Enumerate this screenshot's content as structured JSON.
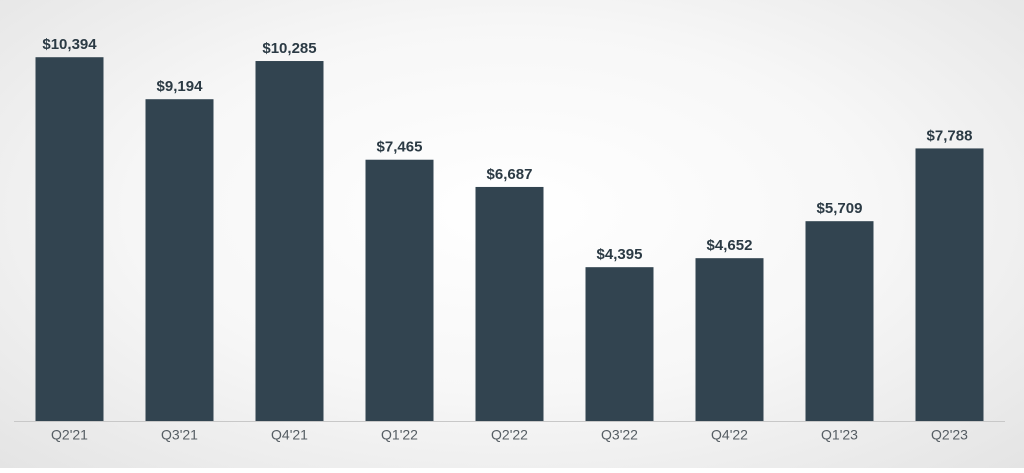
{
  "chart_data": {
    "type": "bar",
    "categories": [
      "Q2'21",
      "Q3'21",
      "Q4'21",
      "Q1'22",
      "Q2'22",
      "Q3'22",
      "Q4'22",
      "Q1'23",
      "Q2'23"
    ],
    "values": [
      10394,
      9194,
      10285,
      7465,
      6687,
      4395,
      4652,
      5709,
      7788
    ],
    "value_labels": [
      "$10,394",
      "$9,194",
      "$10,285",
      "$7,465",
      "$6,687",
      "$4,395",
      "$4,652",
      "$5,709",
      "$7,788"
    ],
    "color": "#324450",
    "ylim": [
      0,
      11000
    ]
  }
}
